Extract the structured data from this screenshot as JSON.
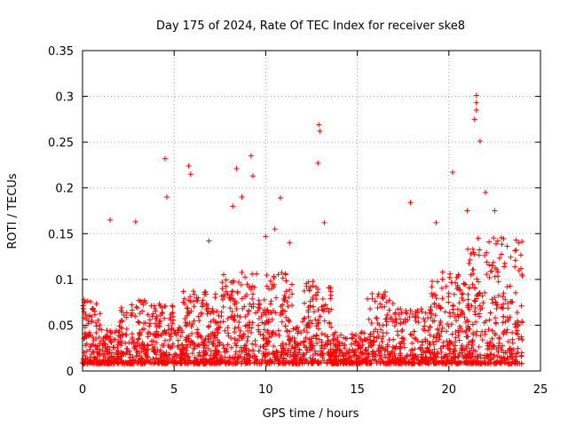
{
  "chart_data": {
    "type": "scatter",
    "title": "Day 175 of 2024, Rate Of TEC Index for receiver ske8",
    "xlabel": "GPS time / hours",
    "ylabel": "ROTI / TECUs",
    "xlim": [
      0,
      25
    ],
    "ylim": [
      0,
      0.35
    ],
    "x_ticks": [
      0,
      5,
      10,
      15,
      20,
      25
    ],
    "x_tick_labels": [
      "0",
      "5",
      "10",
      "15",
      "20",
      "25"
    ],
    "y_ticks": [
      0,
      0.05,
      0.1,
      0.15,
      0.2,
      0.25,
      0.3,
      0.35
    ],
    "y_tick_labels": [
      "0",
      "0.05",
      "0.1",
      "0.15",
      "0.2",
      "0.25",
      "0.3",
      "0.35"
    ],
    "grid": true,
    "marker": "+",
    "marker_color": "#ff0000",
    "series": [
      {
        "name": "ROTI",
        "note": "dense band 0.01-0.08 TECU/s across 0-24 h; representative peaks listed",
        "points": [
          [
            0.1,
            0.075
          ],
          [
            1.5,
            0.165
          ],
          [
            2.9,
            0.163
          ],
          [
            4.5,
            0.232
          ],
          [
            4.6,
            0.19
          ],
          [
            5.8,
            0.224
          ],
          [
            5.9,
            0.215
          ],
          [
            6.9,
            0.142
          ],
          [
            8.2,
            0.18
          ],
          [
            8.4,
            0.221
          ],
          [
            8.7,
            0.19
          ],
          [
            9.2,
            0.235
          ],
          [
            9.3,
            0.213
          ],
          [
            10.0,
            0.147
          ],
          [
            10.5,
            0.155
          ],
          [
            10.8,
            0.189
          ],
          [
            11.3,
            0.14
          ],
          [
            12.9,
            0.269
          ],
          [
            12.95,
            0.262
          ],
          [
            12.85,
            0.227
          ],
          [
            13.2,
            0.162
          ],
          [
            17.9,
            0.184
          ],
          [
            19.3,
            0.162
          ],
          [
            20.2,
            0.217
          ],
          [
            21.0,
            0.175
          ],
          [
            21.5,
            0.301
          ],
          [
            21.5,
            0.293
          ],
          [
            21.5,
            0.285
          ],
          [
            21.4,
            0.275
          ],
          [
            21.7,
            0.251
          ],
          [
            22.0,
            0.195
          ],
          [
            22.5,
            0.175
          ],
          [
            23.8,
            0.14
          ]
        ]
      }
    ]
  }
}
